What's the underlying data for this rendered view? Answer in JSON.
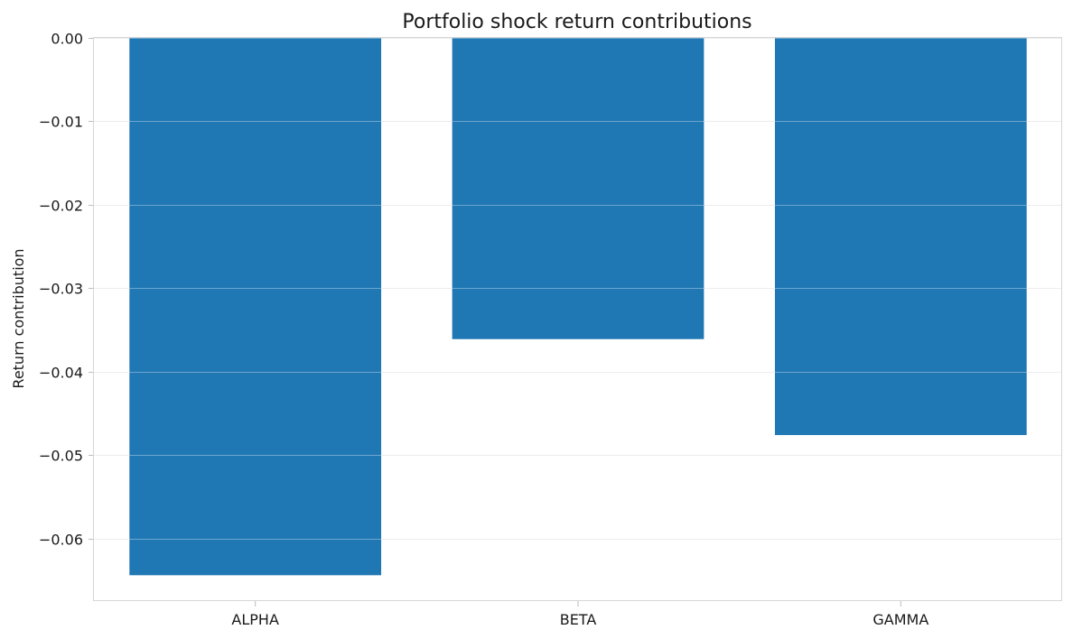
{
  "chart_data": {
    "type": "bar",
    "title": "Portfolio shock return contributions",
    "xlabel": "",
    "ylabel": "Return contribution",
    "categories": [
      "ALPHA",
      "BETA",
      "GAMMA"
    ],
    "values": [
      -0.0644,
      -0.0361,
      -0.0476
    ],
    "ylim": [
      -0.0675,
      0.0
    ],
    "yticks": [
      0.0,
      -0.01,
      -0.02,
      -0.03,
      -0.04,
      -0.05,
      -0.06
    ],
    "ytick_labels": [
      "0.00",
      "−0.01",
      "−0.02",
      "−0.03",
      "−0.04",
      "−0.05",
      "−0.06"
    ],
    "grid": true,
    "legend": "none",
    "bar_color": "#1f77b4"
  }
}
